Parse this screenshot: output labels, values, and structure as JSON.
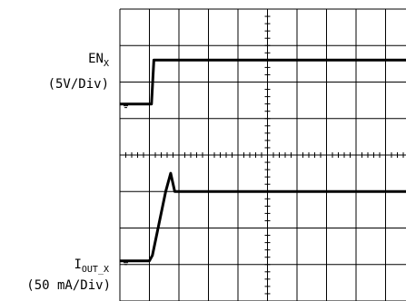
{
  "chart_data": {
    "type": "line",
    "grid": true,
    "x_divisions": 10,
    "y_divisions": 8,
    "channels": [
      {
        "name_main": "EN",
        "name_sub": "X",
        "scale": "(5V/Div)",
        "trace": [
          [
            0,
            0.4
          ],
          [
            1.07,
            0.4
          ],
          [
            1.15,
            1.6
          ],
          [
            10,
            1.6
          ]
        ],
        "center_div": 5.7
      },
      {
        "name_main": "I",
        "name_sub": "OUT_X",
        "scale": "(50 mA/Div)",
        "trace": [
          [
            0,
            0.1
          ],
          [
            1.0,
            0.1
          ],
          [
            1.1,
            0.25
          ],
          [
            1.55,
            2.0
          ],
          [
            1.72,
            2.5
          ],
          [
            1.86,
            2.0
          ],
          [
            10,
            2.0
          ]
        ],
        "center_div": 0.7
      }
    ],
    "colors": {
      "trace": "#000000",
      "grid": "#000000",
      "background": "#ffffff"
    }
  }
}
